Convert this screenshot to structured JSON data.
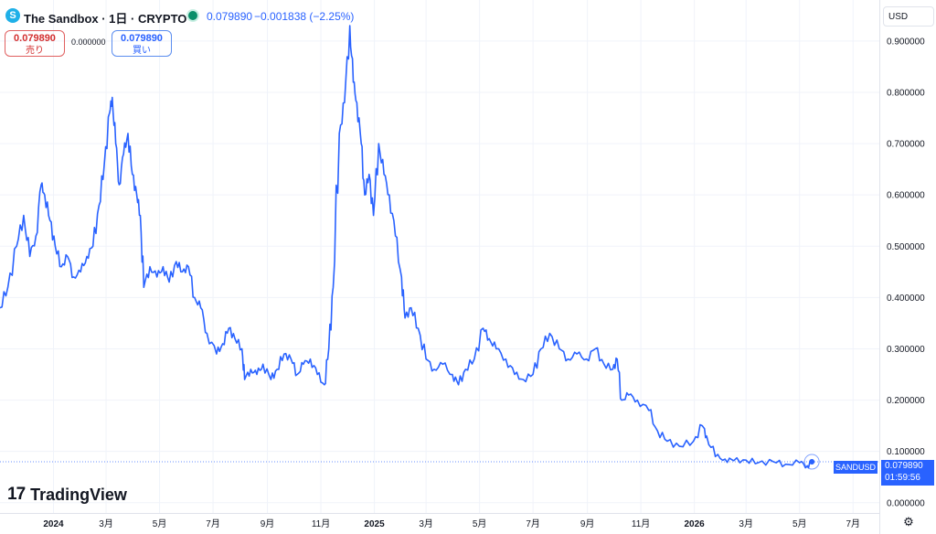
{
  "header": {
    "symbol_icon": "S",
    "title": "The Sandbox · 1日 · CRYPTO",
    "last_price": "0.079890",
    "change": "−0.001838 (−2.25%)"
  },
  "trade": {
    "sell_price": "0.079890",
    "sell_label": "売り",
    "spread": "0.000000",
    "buy_price": "0.079890",
    "buy_label": "買い"
  },
  "currency_label": "USD",
  "price_tag": {
    "symbol": "SANDUSD",
    "price": "0.079890",
    "countdown": "01:59:56"
  },
  "brand": {
    "logo": "17",
    "name": "TradingView"
  },
  "icons": {
    "live": "live-dot-icon",
    "settings": "gear-icon"
  },
  "colors": {
    "line": "#2962ff",
    "up": "#0b8f6a",
    "down": "#d32f2f",
    "accent": "#2962ff"
  },
  "chart_data": {
    "type": "line",
    "title": "",
    "xlabel": "",
    "ylabel": "",
    "ylim": [
      -0.02,
      0.98
    ],
    "y_ticks": [
      "0.900000",
      "0.800000",
      "0.700000",
      "0.600000",
      "0.500000",
      "0.400000",
      "0.300000",
      "0.200000",
      "0.100000",
      "0.000000"
    ],
    "x_ticks": [
      "2024",
      "3月",
      "5月",
      "7月",
      "9月",
      "11月",
      "2025",
      "3月",
      "5月",
      "7月",
      "9月",
      "11月",
      "2026",
      "3月",
      "5月",
      "7月"
    ],
    "x_start": "2023-11-01",
    "x_end": "2026-07-31",
    "last_value": 0.07989,
    "grid": true,
    "series": [
      {
        "name": "SANDUSD",
        "points": [
          [
            "2023-11-01",
            0.38
          ],
          [
            "2023-11-10",
            0.42
          ],
          [
            "2023-11-20",
            0.5
          ],
          [
            "2023-11-28",
            0.56
          ],
          [
            "2023-12-05",
            0.48
          ],
          [
            "2023-12-12",
            0.52
          ],
          [
            "2023-12-18",
            0.62
          ],
          [
            "2023-12-22",
            0.6
          ],
          [
            "2023-12-28",
            0.55
          ],
          [
            "2024-01-03",
            0.5
          ],
          [
            "2024-01-10",
            0.46
          ],
          [
            "2024-01-17",
            0.48
          ],
          [
            "2024-01-24",
            0.44
          ],
          [
            "2024-02-01",
            0.45
          ],
          [
            "2024-02-08",
            0.48
          ],
          [
            "2024-02-15",
            0.5
          ],
          [
            "2024-02-22",
            0.58
          ],
          [
            "2024-02-28",
            0.66
          ],
          [
            "2024-03-05",
            0.76
          ],
          [
            "2024-03-08",
            0.79
          ],
          [
            "2024-03-12",
            0.7
          ],
          [
            "2024-03-16",
            0.62
          ],
          [
            "2024-03-21",
            0.68
          ],
          [
            "2024-03-26",
            0.72
          ],
          [
            "2024-03-31",
            0.64
          ],
          [
            "2024-04-05",
            0.6
          ],
          [
            "2024-04-09",
            0.56
          ],
          [
            "2024-04-13",
            0.42
          ],
          [
            "2024-04-20",
            0.46
          ],
          [
            "2024-04-28",
            0.44
          ],
          [
            "2024-05-05",
            0.46
          ],
          [
            "2024-05-12",
            0.43
          ],
          [
            "2024-05-20",
            0.47
          ],
          [
            "2024-05-27",
            0.45
          ],
          [
            "2024-06-03",
            0.46
          ],
          [
            "2024-06-10",
            0.4
          ],
          [
            "2024-06-17",
            0.38
          ],
          [
            "2024-06-24",
            0.33
          ],
          [
            "2024-07-05",
            0.29
          ],
          [
            "2024-07-12",
            0.31
          ],
          [
            "2024-07-19",
            0.34
          ],
          [
            "2024-07-26",
            0.32
          ],
          [
            "2024-08-03",
            0.3
          ],
          [
            "2024-08-06",
            0.24
          ],
          [
            "2024-08-13",
            0.26
          ],
          [
            "2024-08-20",
            0.25
          ],
          [
            "2024-08-27",
            0.27
          ],
          [
            "2024-09-05",
            0.24
          ],
          [
            "2024-09-12",
            0.26
          ],
          [
            "2024-09-20",
            0.29
          ],
          [
            "2024-09-28",
            0.28
          ],
          [
            "2024-10-05",
            0.25
          ],
          [
            "2024-10-12",
            0.27
          ],
          [
            "2024-10-20",
            0.28
          ],
          [
            "2024-10-28",
            0.25
          ],
          [
            "2024-11-05",
            0.23
          ],
          [
            "2024-11-10",
            0.3
          ],
          [
            "2024-11-15",
            0.42
          ],
          [
            "2024-11-22",
            0.72
          ],
          [
            "2024-11-28",
            0.78
          ],
          [
            "2024-12-04",
            0.93
          ],
          [
            "2024-12-08",
            0.82
          ],
          [
            "2024-12-12",
            0.78
          ],
          [
            "2024-12-17",
            0.7
          ],
          [
            "2024-12-21",
            0.6
          ],
          [
            "2024-12-26",
            0.64
          ],
          [
            "2024-12-31",
            0.56
          ],
          [
            "2025-01-06",
            0.7
          ],
          [
            "2025-01-12",
            0.64
          ],
          [
            "2025-01-18",
            0.6
          ],
          [
            "2025-01-25",
            0.52
          ],
          [
            "2025-02-01",
            0.44
          ],
          [
            "2025-02-05",
            0.36
          ],
          [
            "2025-02-12",
            0.38
          ],
          [
            "2025-02-20",
            0.34
          ],
          [
            "2025-03-01",
            0.28
          ],
          [
            "2025-03-10",
            0.26
          ],
          [
            "2025-03-20",
            0.27
          ],
          [
            "2025-03-31",
            0.25
          ],
          [
            "2025-04-07",
            0.23
          ],
          [
            "2025-04-15",
            0.26
          ],
          [
            "2025-04-25",
            0.28
          ],
          [
            "2025-05-05",
            0.34
          ],
          [
            "2025-05-12",
            0.32
          ],
          [
            "2025-05-20",
            0.3
          ],
          [
            "2025-05-31",
            0.28
          ],
          [
            "2025-06-10",
            0.25
          ],
          [
            "2025-06-20",
            0.24
          ],
          [
            "2025-07-01",
            0.25
          ],
          [
            "2025-07-10",
            0.3
          ],
          [
            "2025-07-20",
            0.33
          ],
          [
            "2025-07-31",
            0.3
          ],
          [
            "2025-08-10",
            0.28
          ],
          [
            "2025-08-20",
            0.29
          ],
          [
            "2025-08-31",
            0.28
          ],
          [
            "2025-09-10",
            0.3
          ],
          [
            "2025-09-20",
            0.27
          ],
          [
            "2025-09-30",
            0.26
          ],
          [
            "2025-10-05",
            0.28
          ],
          [
            "2025-10-10",
            0.2
          ],
          [
            "2025-10-18",
            0.21
          ],
          [
            "2025-10-28",
            0.2
          ],
          [
            "2025-11-10",
            0.18
          ],
          [
            "2025-11-20",
            0.14
          ],
          [
            "2025-12-01",
            0.12
          ],
          [
            "2025-12-15",
            0.11
          ],
          [
            "2025-12-31",
            0.12
          ],
          [
            "2026-01-10",
            0.15
          ],
          [
            "2026-01-15",
            0.13
          ],
          [
            "2026-01-25",
            0.09
          ],
          [
            "2026-02-05",
            0.085
          ],
          [
            "2026-02-15",
            0.082
          ],
          [
            "2026-03-01",
            0.083
          ],
          [
            "2026-03-15",
            0.078
          ],
          [
            "2026-04-01",
            0.08
          ],
          [
            "2026-04-15",
            0.075
          ],
          [
            "2026-05-01",
            0.078
          ],
          [
            "2026-05-10",
            0.072
          ],
          [
            "2026-05-15",
            0.0799
          ]
        ]
      }
    ]
  }
}
